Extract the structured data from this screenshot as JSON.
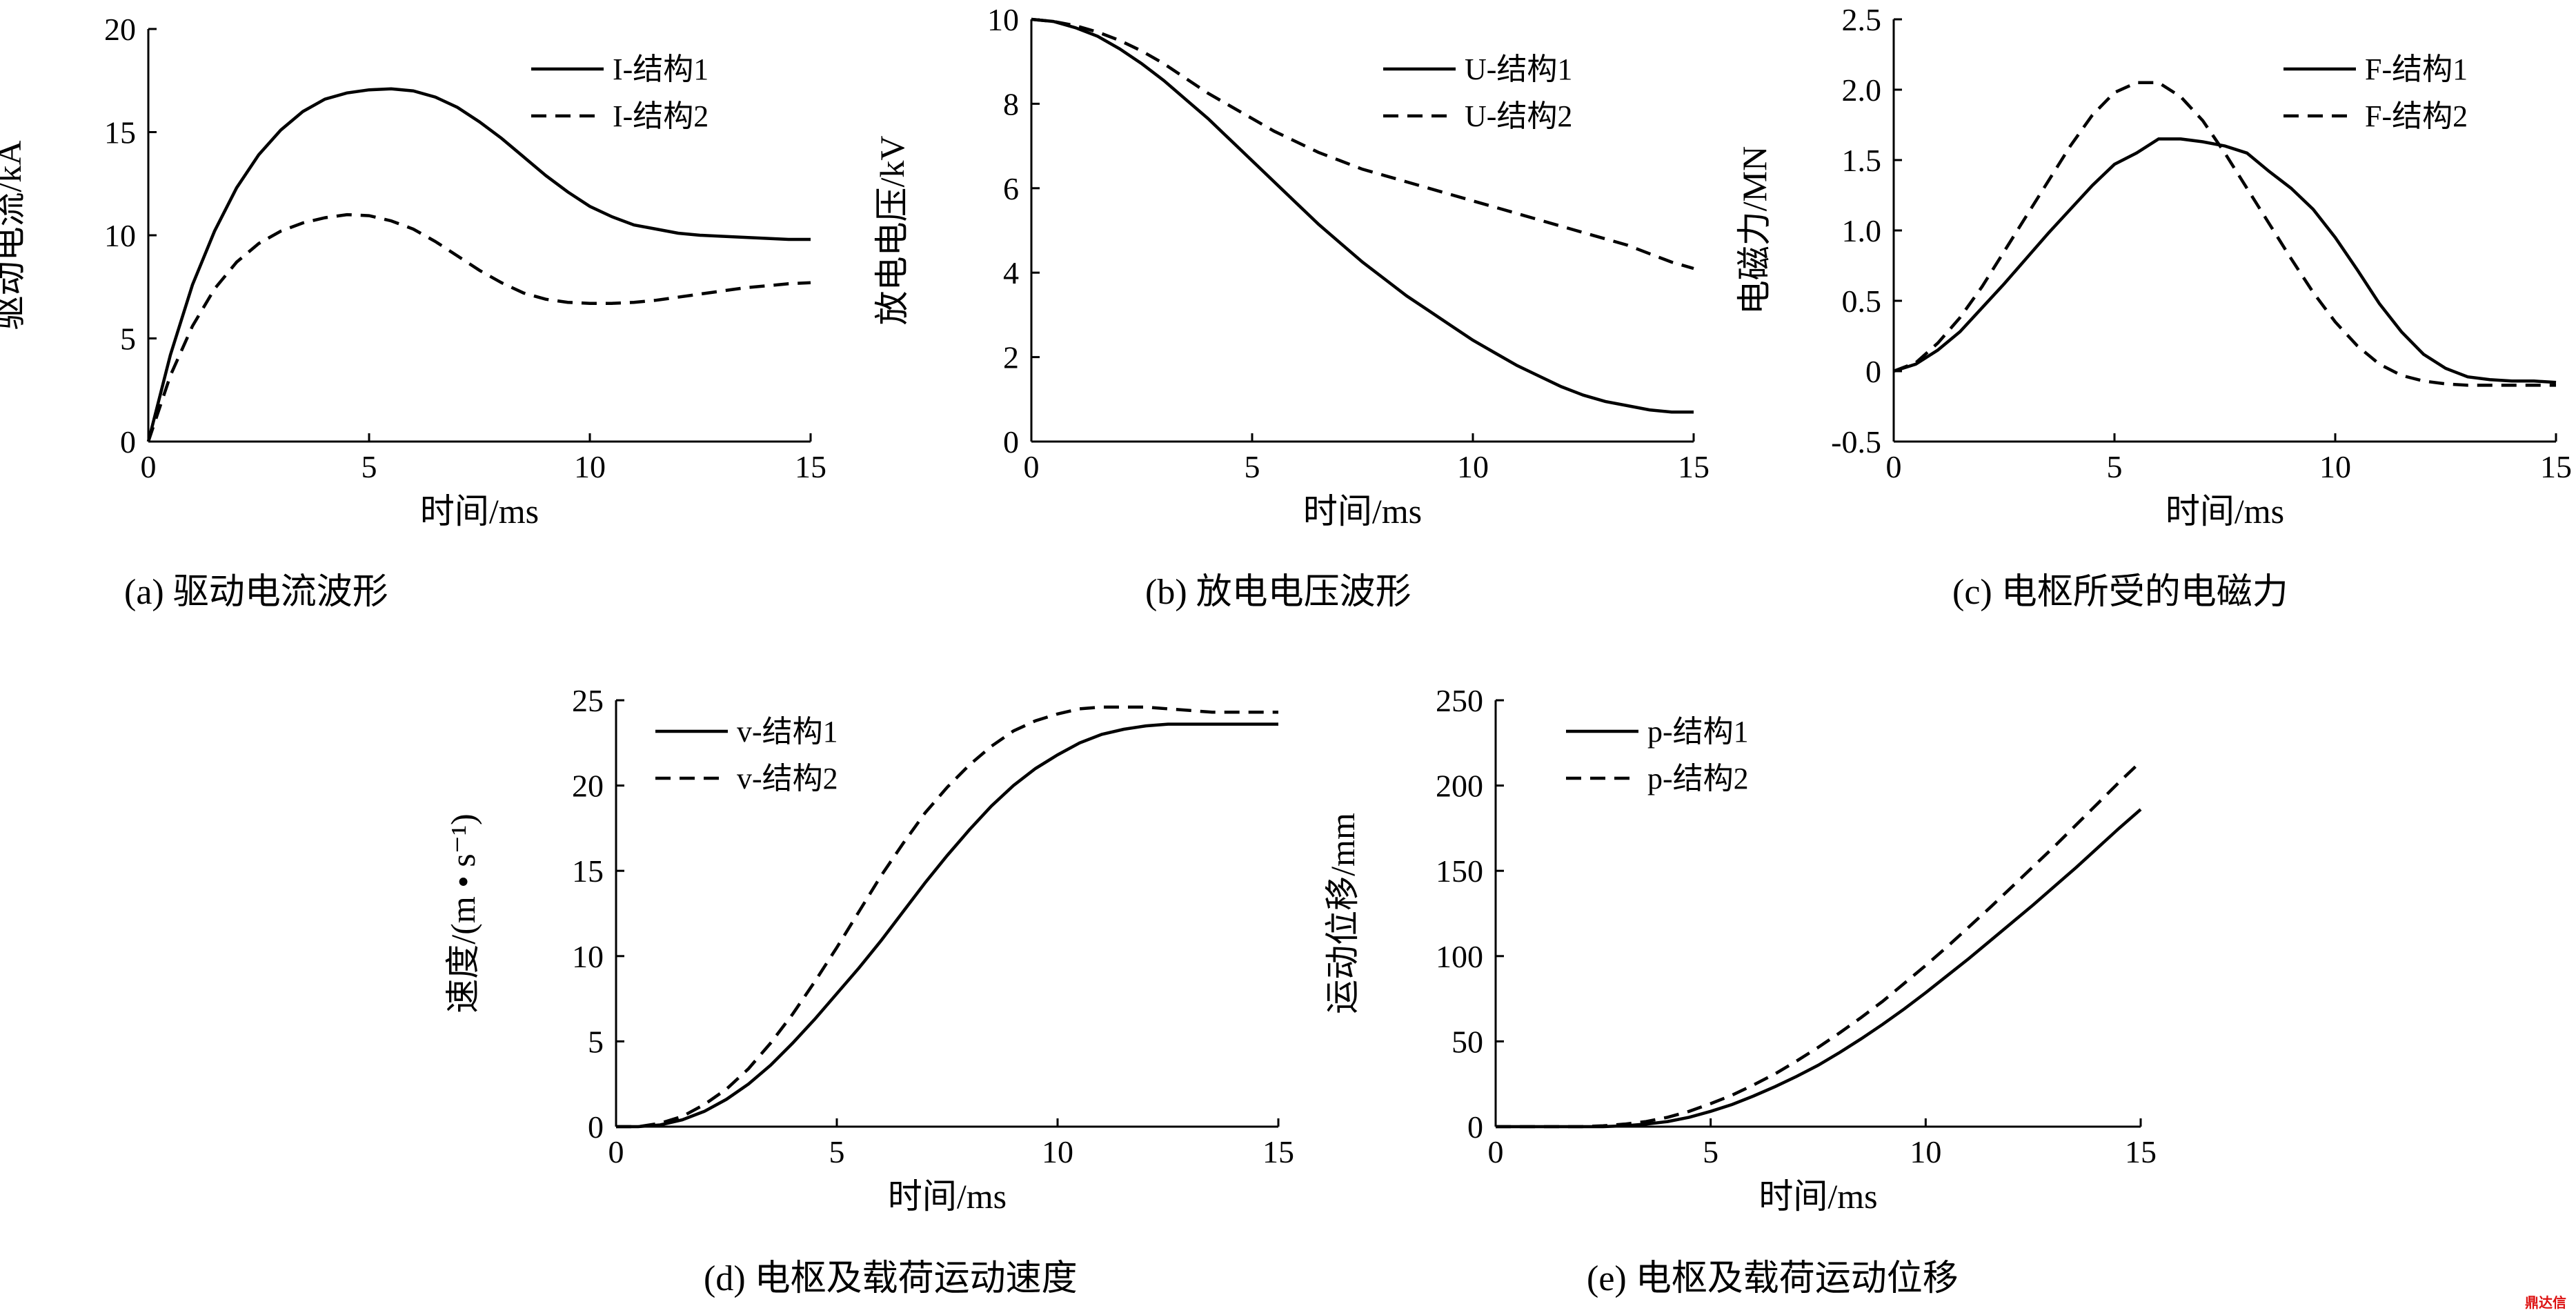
{
  "watermark": "鼎达信",
  "chart_data": [
    {
      "id": "a",
      "type": "line",
      "caption": "(a)  驱动电流波形",
      "xlabel": "时间/ms",
      "ylabel": "驱动电流/kA",
      "xlim": [
        0,
        15
      ],
      "ylim": [
        0,
        20
      ],
      "xticks": [
        0,
        5,
        10,
        15
      ],
      "yticks": [
        0,
        5,
        10,
        15,
        20
      ],
      "legend_position": "top-right",
      "grid": false,
      "series": [
        {
          "name": "I-结构1",
          "style": "solid",
          "x": [
            0,
            0.5,
            1,
            1.5,
            2,
            2.5,
            3,
            3.5,
            4,
            4.5,
            5,
            5.5,
            6,
            6.5,
            7,
            7.5,
            8,
            8.5,
            9,
            9.5,
            10,
            10.5,
            11,
            11.5,
            12,
            12.5,
            13,
            13.5,
            14,
            14.5,
            15
          ],
          "y": [
            0,
            4.2,
            7.6,
            10.2,
            12.3,
            13.9,
            15.1,
            16.0,
            16.6,
            16.9,
            17.05,
            17.1,
            17.0,
            16.7,
            16.2,
            15.5,
            14.7,
            13.8,
            12.9,
            12.1,
            11.4,
            10.9,
            10.5,
            10.3,
            10.1,
            10.0,
            9.95,
            9.9,
            9.85,
            9.8,
            9.8
          ]
        },
        {
          "name": "I-结构2",
          "style": "dashed",
          "x": [
            0,
            0.5,
            1,
            1.5,
            2,
            2.5,
            3,
            3.5,
            4,
            4.5,
            5,
            5.5,
            6,
            6.5,
            7,
            7.5,
            8,
            8.5,
            9,
            9.5,
            10,
            10.5,
            11,
            11.5,
            12,
            12.5,
            13,
            13.5,
            14,
            14.5,
            15
          ],
          "y": [
            0,
            3.2,
            5.6,
            7.4,
            8.7,
            9.6,
            10.2,
            10.6,
            10.85,
            11.0,
            10.95,
            10.7,
            10.3,
            9.7,
            9.0,
            8.3,
            7.7,
            7.2,
            6.9,
            6.75,
            6.7,
            6.7,
            6.75,
            6.85,
            7.0,
            7.15,
            7.3,
            7.45,
            7.55,
            7.65,
            7.7
          ]
        }
      ]
    },
    {
      "id": "b",
      "type": "line",
      "caption": "(b)  放电电压波形",
      "xlabel": "时间/ms",
      "ylabel": "放电电压/kV",
      "xlim": [
        0,
        15
      ],
      "ylim": [
        0,
        10
      ],
      "xticks": [
        0,
        5,
        10,
        15
      ],
      "yticks": [
        0,
        2,
        4,
        6,
        8,
        10
      ],
      "legend_position": "top-right",
      "grid": false,
      "series": [
        {
          "name": "U-结构1",
          "style": "solid",
          "x": [
            0,
            0.5,
            1,
            1.5,
            2,
            2.5,
            3,
            3.5,
            4,
            4.5,
            5,
            5.5,
            6,
            6.5,
            7,
            7.5,
            8,
            8.5,
            9,
            9.5,
            10,
            10.5,
            11,
            11.5,
            12,
            12.5,
            13,
            13.5,
            14,
            14.5,
            15
          ],
          "y": [
            10,
            9.95,
            9.8,
            9.6,
            9.3,
            8.95,
            8.55,
            8.1,
            7.65,
            7.15,
            6.65,
            6.15,
            5.65,
            5.15,
            4.7,
            4.25,
            3.85,
            3.45,
            3.1,
            2.75,
            2.4,
            2.1,
            1.8,
            1.55,
            1.3,
            1.1,
            0.95,
            0.85,
            0.75,
            0.7,
            0.7
          ]
        },
        {
          "name": "U-结构2",
          "style": "dashed",
          "x": [
            0,
            0.5,
            1,
            1.5,
            2,
            2.5,
            3,
            3.5,
            4,
            4.5,
            5,
            5.5,
            6,
            6.5,
            7,
            7.5,
            8,
            8.5,
            9,
            9.5,
            10,
            10.5,
            11,
            11.5,
            12,
            12.5,
            13,
            13.5,
            14,
            14.5,
            15
          ],
          "y": [
            10,
            9.95,
            9.85,
            9.7,
            9.5,
            9.25,
            8.95,
            8.6,
            8.25,
            7.95,
            7.65,
            7.35,
            7.1,
            6.85,
            6.65,
            6.45,
            6.3,
            6.15,
            6.0,
            5.85,
            5.7,
            5.55,
            5.4,
            5.25,
            5.1,
            4.95,
            4.8,
            4.65,
            4.45,
            4.25,
            4.1
          ]
        }
      ]
    },
    {
      "id": "c",
      "type": "line",
      "caption": "(c)  电枢所受的电磁力",
      "xlabel": "时间/ms",
      "ylabel": "电磁力/MN",
      "xlim": [
        0,
        15
      ],
      "ylim": [
        -0.5,
        2.5
      ],
      "xticks": [
        0,
        5,
        10,
        15
      ],
      "yticks": [
        -0.5,
        0,
        0.5,
        1.0,
        1.5,
        2.0,
        2.5
      ],
      "ytick_labels": [
        "-0.5",
        "0",
        "0.5",
        "1.0",
        "1.5",
        "2.0",
        "2.5"
      ],
      "legend_position": "top-right",
      "grid": false,
      "series": [
        {
          "name": "F-结构1",
          "style": "solid",
          "x": [
            0,
            0.5,
            1,
            1.5,
            2,
            2.5,
            3,
            3.5,
            4,
            4.5,
            5,
            5.5,
            6,
            6.5,
            7,
            7.5,
            8,
            8.5,
            9,
            9.5,
            10,
            10.5,
            11,
            11.5,
            12,
            12.5,
            13,
            13.5,
            14,
            14.5,
            15
          ],
          "y": [
            0,
            0.05,
            0.15,
            0.28,
            0.45,
            0.62,
            0.8,
            0.98,
            1.15,
            1.32,
            1.47,
            1.55,
            1.65,
            1.65,
            1.63,
            1.6,
            1.55,
            1.42,
            1.3,
            1.15,
            0.95,
            0.72,
            0.48,
            0.28,
            0.12,
            0.02,
            -0.04,
            -0.06,
            -0.07,
            -0.07,
            -0.08
          ]
        },
        {
          "name": "F-结构2",
          "style": "dashed",
          "x": [
            0,
            0.5,
            1,
            1.5,
            2,
            2.5,
            3,
            3.5,
            4,
            4.5,
            5,
            5.5,
            6,
            6.5,
            7,
            7.5,
            8,
            8.5,
            9,
            9.5,
            10,
            10.5,
            11,
            11.5,
            12,
            12.5,
            13,
            13.5,
            14,
            14.5,
            15
          ],
          "y": [
            0,
            0.06,
            0.2,
            0.38,
            0.6,
            0.85,
            1.1,
            1.35,
            1.6,
            1.82,
            1.98,
            2.05,
            2.05,
            1.95,
            1.78,
            1.55,
            1.3,
            1.05,
            0.8,
            0.56,
            0.35,
            0.18,
            0.05,
            -0.03,
            -0.07,
            -0.09,
            -0.1,
            -0.1,
            -0.1,
            -0.1,
            -0.1
          ]
        }
      ]
    },
    {
      "id": "d",
      "type": "line",
      "caption": "(d)  电枢及载荷运动速度",
      "xlabel": "时间/ms",
      "ylabel": "速度/(m • s⁻¹)",
      "xlim": [
        0,
        15
      ],
      "ylim": [
        0,
        25
      ],
      "xticks": [
        0,
        5,
        10,
        15
      ],
      "yticks": [
        0,
        5,
        10,
        15,
        20,
        25
      ],
      "legend_position": "top-left",
      "grid": false,
      "series": [
        {
          "name": "v-结构1",
          "style": "solid",
          "x": [
            0,
            0.5,
            1,
            1.5,
            2,
            2.5,
            3,
            3.5,
            4,
            4.5,
            5,
            5.5,
            6,
            6.5,
            7,
            7.5,
            8,
            8.5,
            9,
            9.5,
            10,
            10.5,
            11,
            11.5,
            12,
            12.5,
            13,
            13.5,
            14,
            14.5,
            15
          ],
          "y": [
            0,
            0,
            0.1,
            0.4,
            0.9,
            1.6,
            2.5,
            3.6,
            4.9,
            6.3,
            7.8,
            9.3,
            10.9,
            12.6,
            14.3,
            15.9,
            17.4,
            18.8,
            20.0,
            21.0,
            21.8,
            22.5,
            23.0,
            23.3,
            23.5,
            23.6,
            23.6,
            23.6,
            23.6,
            23.6,
            23.6
          ]
        },
        {
          "name": "v-结构2",
          "style": "dashed",
          "x": [
            0,
            0.5,
            1,
            1.5,
            2,
            2.5,
            3,
            3.5,
            4,
            4.5,
            5,
            5.5,
            6,
            6.5,
            7,
            7.5,
            8,
            8.5,
            9,
            9.5,
            10,
            10.5,
            11,
            11.5,
            12,
            12.5,
            13,
            13.5,
            14,
            14.5,
            15
          ],
          "y": [
            0,
            0,
            0.2,
            0.6,
            1.3,
            2.2,
            3.4,
            4.9,
            6.6,
            8.5,
            10.5,
            12.6,
            14.7,
            16.6,
            18.4,
            19.9,
            21.2,
            22.3,
            23.2,
            23.8,
            24.2,
            24.5,
            24.6,
            24.6,
            24.6,
            24.5,
            24.4,
            24.3,
            24.3,
            24.3,
            24.3
          ]
        }
      ]
    },
    {
      "id": "e",
      "type": "line",
      "caption": "(e)  电枢及载荷运动位移",
      "xlabel": "时间/ms",
      "ylabel": "运动位移/mm",
      "xlim": [
        0,
        15
      ],
      "ylim": [
        0,
        250
      ],
      "xticks": [
        0,
        5,
        10,
        15
      ],
      "yticks": [
        0,
        50,
        100,
        150,
        200,
        250
      ],
      "legend_position": "top-left",
      "grid": false,
      "series": [
        {
          "name": "p-结构1",
          "style": "solid",
          "x": [
            0,
            0.5,
            1,
            1.5,
            2,
            2.5,
            3,
            3.5,
            4,
            4.5,
            5,
            5.5,
            6,
            6.5,
            7,
            7.5,
            8,
            8.5,
            9,
            9.5,
            10,
            10.5,
            11,
            11.5,
            12,
            12.5,
            13,
            13.5,
            14,
            14.5,
            15
          ],
          "y": [
            0,
            0,
            0,
            0,
            0,
            0,
            0.5,
            1.5,
            3,
            5.5,
            9,
            13,
            18,
            23.5,
            29.5,
            36,
            43.5,
            51.5,
            60,
            69,
            78.5,
            88.5,
            98.5,
            109,
            119.5,
            130,
            141,
            152,
            163.5,
            175,
            186
          ]
        },
        {
          "name": "p-结构2",
          "style": "dashed",
          "x": [
            0,
            0.5,
            1,
            1.5,
            2,
            2.5,
            3,
            3.5,
            4,
            4.5,
            5,
            5.5,
            6,
            6.5,
            7,
            7.5,
            8,
            8.5,
            9,
            9.5,
            10,
            10.5,
            11,
            11.5,
            12,
            12.5,
            13,
            13.5,
            14,
            14.5,
            15
          ],
          "y": [
            0,
            0,
            0,
            0,
            0,
            0.5,
            1.5,
            3,
            5.5,
            9,
            13.5,
            18.5,
            24.5,
            31,
            38.5,
            46.5,
            55,
            64,
            73.5,
            84,
            94.5,
            105.5,
            117,
            128.5,
            140.5,
            152.5,
            164.5,
            177,
            189.5,
            202,
            214
          ]
        }
      ]
    }
  ]
}
